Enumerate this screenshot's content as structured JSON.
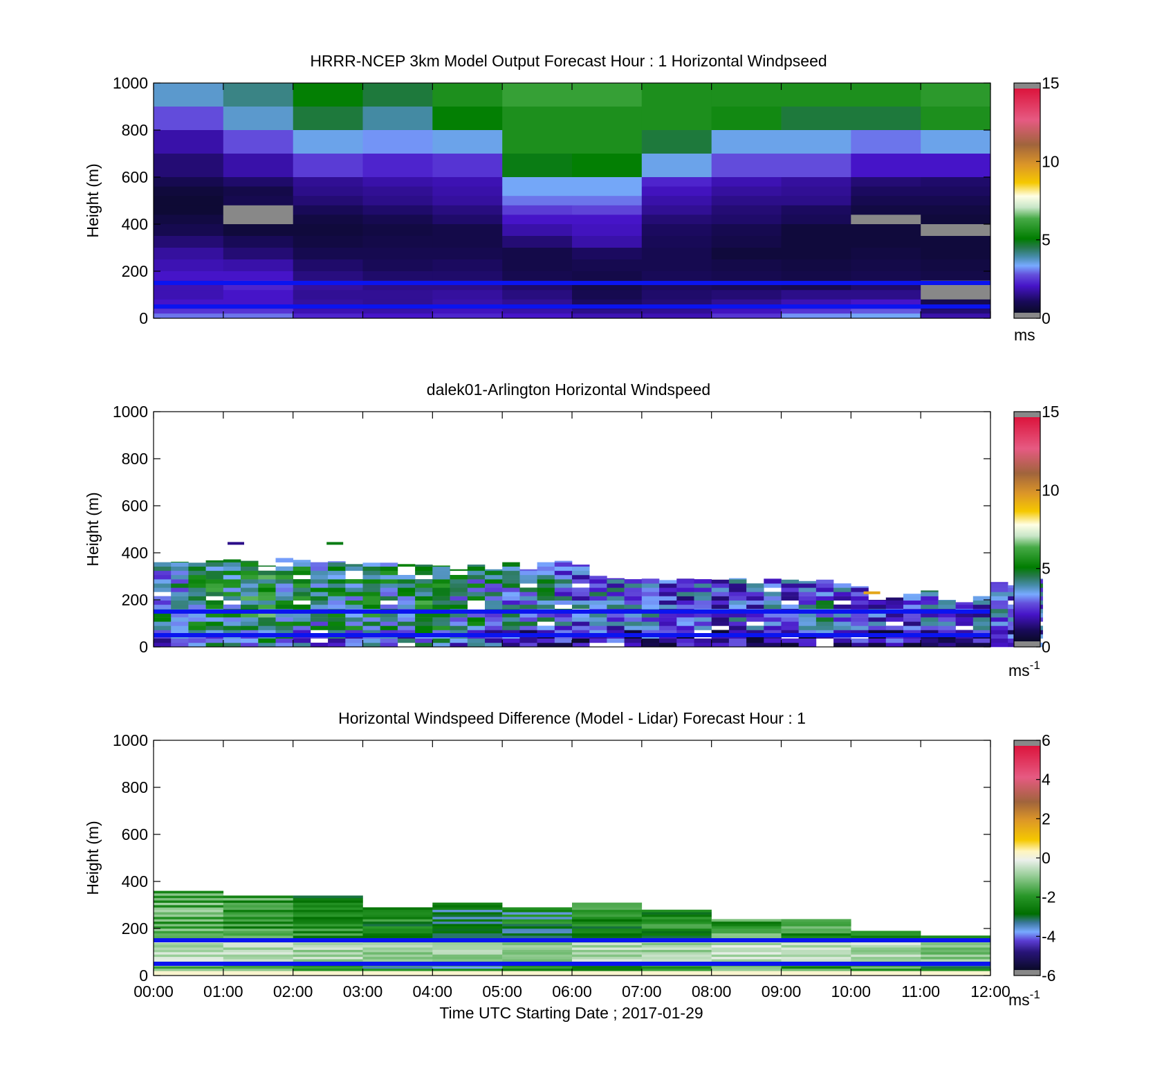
{
  "figure": {
    "panels": [
      {
        "id": "model",
        "title": "HRRR-NCEP 3km Model Output   Forecast Hour : 1 Horizontal Windpseed",
        "ylabel": "Height (m)",
        "colorbar_unit": "ms",
        "colorbar_sup": ""
      },
      {
        "id": "lidar",
        "title": "dalek01-Arlington  Horizontal Windspeed",
        "ylabel": "Height (m)",
        "colorbar_unit": "ms",
        "colorbar_sup": "-1"
      },
      {
        "id": "diff",
        "title": "Horizontal Windspeed Difference (Model - Lidar) Forecast Hour : 1",
        "ylabel": "Height (m)",
        "colorbar_unit": "ms",
        "colorbar_sup": "-1"
      }
    ],
    "xlabel": "Time UTC  Starting Date ; 2017-01-29"
  },
  "chart_data": [
    {
      "type": "heatmap",
      "title": "HRRR-NCEP 3km Model Output   Forecast Hour : 1 Horizontal Windpseed",
      "ylabel": "Height (m)",
      "ylim": [
        0,
        1000
      ],
      "yticks": [
        0,
        200,
        400,
        600,
        800,
        1000
      ],
      "xlim": [
        0,
        12
      ],
      "x_unit": "hours UTC from 2017-01-29 00:00",
      "colorbar": {
        "range": [
          0,
          15
        ],
        "ticks": [
          0,
          5,
          10,
          15
        ],
        "unit": "ms"
      },
      "reference_lines_m": [
        50,
        150
      ],
      "missing_value": null,
      "hour_bins": [
        [
          0,
          1
        ],
        [
          1,
          2
        ],
        [
          2,
          3
        ],
        [
          3,
          4
        ],
        [
          4,
          5
        ],
        [
          5,
          6
        ],
        [
          6,
          7
        ],
        [
          7,
          8
        ],
        [
          8,
          9
        ],
        [
          9,
          10
        ],
        [
          10,
          11
        ],
        [
          11,
          12
        ]
      ],
      "level_tops_m": [
        1000,
        900,
        800,
        700,
        600,
        560,
        520,
        480,
        440,
        400,
        350,
        300,
        250,
        200,
        160,
        120,
        80,
        40,
        20
      ],
      "level_bottoms_m": [
        900,
        800,
        700,
        600,
        560,
        520,
        480,
        440,
        400,
        350,
        300,
        250,
        200,
        160,
        120,
        80,
        40,
        20,
        0
      ],
      "values": [
        [
          3.5,
          4.0,
          5.0,
          4.5,
          5.5,
          6.0,
          6.0,
          5.5,
          5.5,
          5.5,
          5.5,
          5.8
        ],
        [
          2.5,
          3.5,
          4.5,
          3.8,
          5.0,
          5.5,
          5.5,
          5.5,
          5.3,
          4.5,
          4.5,
          5.5
        ],
        [
          1.5,
          2.5,
          3.3,
          3.0,
          3.3,
          5.5,
          5.5,
          4.5,
          3.3,
          3.3,
          2.8,
          3.3
        ],
        [
          1.0,
          1.5,
          2.3,
          2.0,
          2.2,
          4.8,
          5.0,
          3.3,
          2.5,
          2.5,
          1.8,
          1.8
        ],
        [
          0.6,
          0.9,
          1.3,
          1.5,
          1.6,
          3.2,
          3.2,
          2.0,
          1.6,
          1.4,
          1.0,
          0.9
        ],
        [
          0.3,
          0.5,
          1.2,
          1.3,
          1.5,
          3.2,
          3.2,
          1.7,
          1.4,
          1.3,
          0.8,
          0.8
        ],
        [
          0.2,
          0.6,
          1.0,
          1.2,
          1.4,
          2.8,
          2.8,
          1.5,
          1.2,
          1.2,
          0.6,
          0.6
        ],
        [
          0.2,
          null,
          0.7,
          0.9,
          1.1,
          2.3,
          2.4,
          1.3,
          1.0,
          0.8,
          0.4,
          0.4
        ],
        [
          0.4,
          null,
          0.4,
          0.6,
          0.9,
          1.8,
          1.8,
          1.0,
          0.9,
          0.7,
          null,
          0.3
        ],
        [
          0.6,
          0.3,
          0.3,
          0.4,
          0.5,
          1.5,
          1.7,
          0.8,
          0.6,
          0.3,
          0.3,
          null
        ],
        [
          1.0,
          0.7,
          0.4,
          0.5,
          0.5,
          1.0,
          1.5,
          0.7,
          0.5,
          0.3,
          0.3,
          0.3
        ],
        [
          1.4,
          1.0,
          0.6,
          0.6,
          0.6,
          0.5,
          0.8,
          0.6,
          0.3,
          0.3,
          0.4,
          0.3
        ],
        [
          1.6,
          1.5,
          0.9,
          0.7,
          0.8,
          0.5,
          0.6,
          0.6,
          0.5,
          0.4,
          0.5,
          0.4
        ],
        [
          1.8,
          1.8,
          1.1,
          0.9,
          0.9,
          0.6,
          0.5,
          0.7,
          0.6,
          0.5,
          0.6,
          0.5
        ],
        [
          1.6,
          2.0,
          1.4,
          1.2,
          1.2,
          0.9,
          0.5,
          0.8,
          0.7,
          0.6,
          0.9,
          null
        ],
        [
          1.6,
          1.8,
          1.3,
          1.3,
          1.4,
          1.1,
          0.6,
          0.9,
          1.0,
          1.2,
          1.2,
          null
        ],
        [
          1.8,
          1.8,
          1.4,
          1.3,
          1.5,
          1.3,
          0.8,
          1.0,
          1.3,
          1.6,
          1.8,
          0.6
        ],
        [
          2.2,
          2.2,
          1.6,
          1.5,
          1.7,
          1.5,
          1.2,
          1.3,
          1.7,
          2.2,
          2.6,
          1.0
        ],
        [
          2.8,
          2.8,
          2.0,
          1.8,
          2.0,
          1.8,
          1.6,
          1.6,
          2.2,
          3.0,
          3.2,
          1.5
        ]
      ]
    },
    {
      "type": "heatmap",
      "title": "dalek01-Arlington  Horizontal Windspeed",
      "ylabel": "Height (m)",
      "ylim": [
        0,
        1000
      ],
      "yticks": [
        0,
        200,
        400,
        600,
        800,
        1000
      ],
      "xlim": [
        0,
        12
      ],
      "colorbar": {
        "range": [
          0,
          15
        ],
        "ticks": [
          0,
          5,
          10,
          15
        ],
        "unit": "ms-1"
      },
      "reference_lines_m": [
        50,
        150
      ],
      "column_width_h": 0.25,
      "level_step_m": 18,
      "profile_top_m": [
        360,
        362,
        358,
        368,
        372,
        366,
        346,
        378,
        370,
        360,
        364,
        352,
        358,
        358,
        352,
        350,
        346,
        330,
        350,
        330,
        360,
        330,
        360,
        366,
        350,
        302,
        292,
        288,
        290,
        284,
        290,
        288,
        286,
        292,
        286,
        290,
        286,
        280,
        286,
        276,
        258,
        200,
        210,
        226,
        240,
        200,
        190,
        220,
        276,
        262,
        290
      ],
      "profile_mean_ms": [
        3.5,
        3.8,
        4.2,
        4.6,
        4.4,
        4.9,
        5.0,
        4.4,
        4.3,
        3.9,
        4.0,
        4.1,
        4.4,
        4.2,
        4.0,
        4.8,
        4.5,
        3.7,
        3.9,
        3.5,
        3.4,
        3.2,
        3.3,
        3.0,
        2.9,
        3.1,
        2.8,
        2.7,
        2.9,
        2.6,
        2.5,
        2.4,
        2.4,
        2.6,
        2.5,
        2.7,
        2.5,
        2.9,
        3.2,
        2.8,
        2.6,
        2.4,
        2.5,
        2.6,
        2.9,
        3.0,
        2.7,
        2.6,
        2.8,
        2.9,
        3.1
      ],
      "isolated_points": [
        {
          "x_h": 1.18,
          "y_m": 440,
          "value_ms": 1.2
        },
        {
          "x_h": 2.6,
          "y_m": 440,
          "value_ms": 4.8
        },
        {
          "x_h": 10.3,
          "y_m": 230,
          "value_ms": 9.5
        }
      ]
    },
    {
      "type": "heatmap",
      "title": "Horizontal Windspeed Difference (Model - Lidar) Forecast Hour : 1",
      "ylabel": "Height (m)",
      "xlabel": "Time UTC  Starting Date ; 2017-01-29",
      "ylim": [
        0,
        1000
      ],
      "yticks": [
        0,
        200,
        400,
        600,
        800,
        1000
      ],
      "xlim": [
        0,
        12
      ],
      "xticklabels": [
        "00:00",
        "01:00",
        "02:00",
        "03:00",
        "04:00",
        "05:00",
        "06:00",
        "07:00",
        "08:00",
        "09:00",
        "10:00",
        "11:00",
        "12:00"
      ],
      "colorbar": {
        "range": [
          -6,
          6
        ],
        "ticks": [
          -6,
          -4,
          -2,
          0,
          2,
          4,
          6
        ],
        "unit": "ms-1"
      },
      "reference_lines_m": [
        50,
        150
      ],
      "level_step_m": 10,
      "hour_profile_top_m": [
        360,
        340,
        340,
        290,
        310,
        290,
        310,
        280,
        240,
        240,
        190,
        170
      ],
      "hour_mean_diff_ms": [
        -1.6,
        -2.0,
        -2.2,
        -2.6,
        -2.9,
        -2.8,
        -2.2,
        -2.2,
        -1.8,
        -2.0,
        -2.0,
        -3.2
      ]
    }
  ]
}
